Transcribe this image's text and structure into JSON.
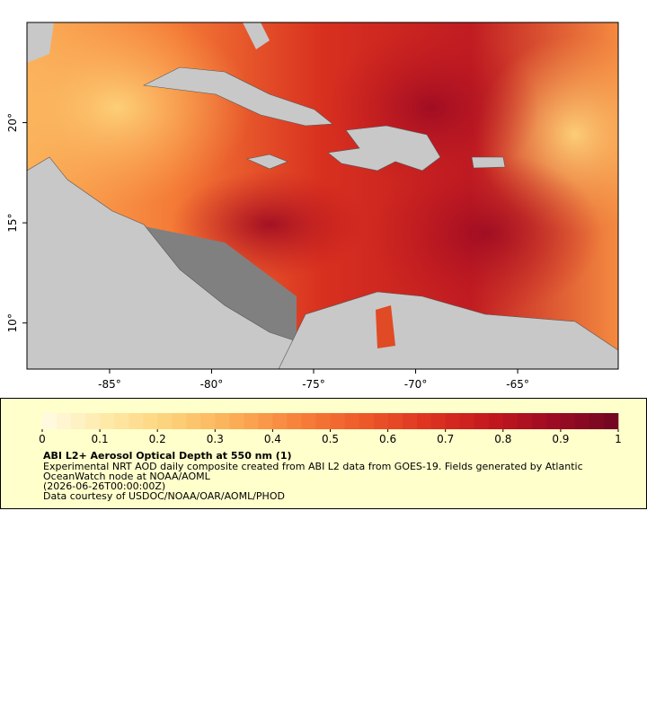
{
  "map": {
    "xlim": [
      -89.05,
      -60.07
    ],
    "ylim": [
      7.7,
      25.0
    ],
    "xticks": [
      {
        "value": -85,
        "label": "-85°"
      },
      {
        "value": -80,
        "label": "-80°"
      },
      {
        "value": -75,
        "label": "-75°"
      },
      {
        "value": -70,
        "label": "-70°"
      },
      {
        "value": -65,
        "label": "-65°"
      }
    ],
    "yticks": [
      {
        "value": 10,
        "label": "10°"
      },
      {
        "value": 15,
        "label": "15°"
      },
      {
        "value": 20,
        "label": "20°"
      }
    ]
  },
  "colorbar": {
    "range": [
      0,
      1
    ],
    "ticks": [
      0,
      0.1,
      0.2,
      0.3,
      0.4,
      0.5,
      0.6,
      0.7,
      0.8,
      0.9,
      1
    ],
    "colors": [
      "#fffbe6",
      "#fee9a8",
      "#fdd27a",
      "#fbae56",
      "#f7803b",
      "#ee5a2a",
      "#de3420",
      "#c3181f",
      "#9c0b23",
      "#700722"
    ]
  },
  "legend": {
    "title": "ABI L2+ Aerosol Optical Depth at 550 nm (1)",
    "lines": [
      "Experimental NRT AOD daily composite created from ABI L2 data from GOES-19. Fields generated by Atlantic",
      "OceanWatch node at NOAA/AOML",
      "(2026-06-26T00:00:00Z)",
      "Data courtesy of USDOC/NOAA/OAR/AOML/PHOD"
    ]
  }
}
